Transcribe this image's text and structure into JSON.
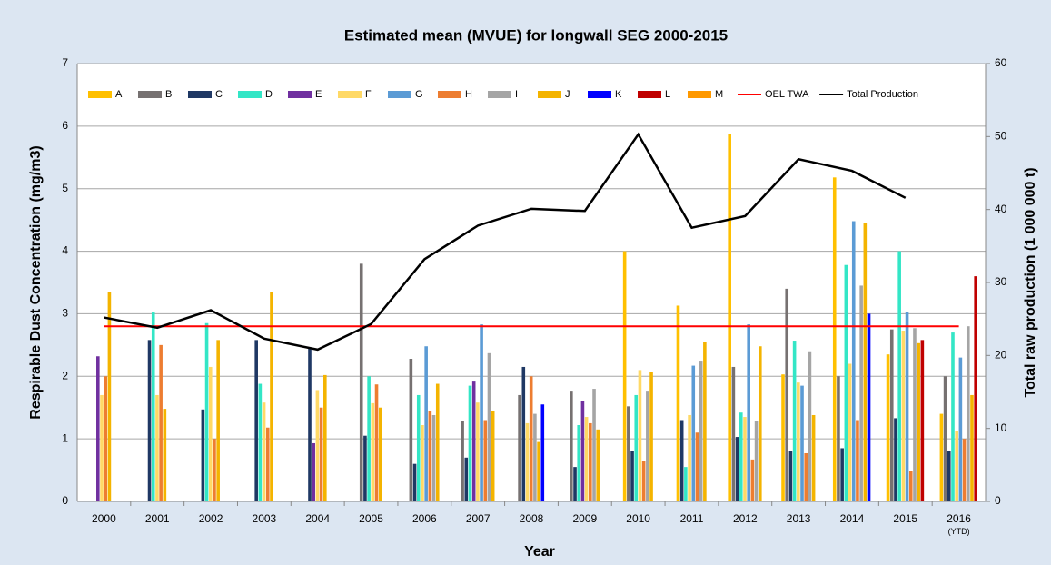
{
  "chart_data": {
    "type": "bar",
    "title": "Estimated mean (MVUE) for longwall SEG 2000-2015",
    "y_label": "Respirable Dust Concentration (mg/m3)",
    "y2_label": "Total raw production  (1 000 000 t)",
    "x_label": "Year",
    "categories": [
      "2000",
      "2001",
      "2002",
      "2003",
      "2004",
      "2005",
      "2006",
      "2007",
      "2008",
      "2009",
      "2010",
      "2011",
      "2012",
      "2013",
      "2014",
      "2015",
      "2016 (YTD)"
    ],
    "ylim": [
      0,
      7
    ],
    "yticks": [
      0,
      1,
      2,
      3,
      4,
      5,
      6,
      7
    ],
    "y2lim": [
      0,
      60
    ],
    "y2ticks": [
      0,
      10,
      20,
      30,
      40,
      50,
      60
    ],
    "grid": true,
    "legend": "top-left",
    "series": [
      {
        "name": "A",
        "color": "#ffc000",
        "values": [
          null,
          null,
          null,
          null,
          null,
          null,
          null,
          null,
          null,
          null,
          4.0,
          3.13,
          5.87,
          2.03,
          5.18,
          2.35,
          1.4
        ]
      },
      {
        "name": "B",
        "color": "#767171",
        "values": [
          null,
          null,
          null,
          null,
          null,
          3.8,
          2.28,
          1.28,
          1.7,
          1.77,
          1.52,
          null,
          2.15,
          3.4,
          2.0,
          2.75,
          2.0
        ]
      },
      {
        "name": "C",
        "color": "#1f3864",
        "values": [
          null,
          2.58,
          1.47,
          2.58,
          2.45,
          1.05,
          0.6,
          0.7,
          2.15,
          0.55,
          0.8,
          1.3,
          1.03,
          0.8,
          0.85,
          1.33,
          0.8
        ]
      },
      {
        "name": "D",
        "color": "#33e6c6",
        "values": [
          null,
          3.02,
          2.85,
          1.88,
          null,
          2.0,
          1.7,
          1.85,
          null,
          1.22,
          1.7,
          0.55,
          1.42,
          2.57,
          3.78,
          4.0,
          2.7
        ]
      },
      {
        "name": "E",
        "color": "#7030a0",
        "values": [
          2.32,
          null,
          null,
          null,
          0.93,
          null,
          null,
          1.93,
          null,
          1.6,
          null,
          null,
          null,
          null,
          null,
          null,
          null
        ]
      },
      {
        "name": "F",
        "color": "#ffd966",
        "values": [
          1.7,
          1.7,
          2.15,
          1.58,
          1.78,
          1.57,
          1.22,
          1.58,
          1.25,
          1.35,
          2.1,
          1.38,
          1.35,
          1.9,
          2.2,
          2.73,
          1.12
        ]
      },
      {
        "name": "G",
        "color": "#5b9bd5",
        "values": [
          null,
          null,
          null,
          null,
          null,
          null,
          2.48,
          2.83,
          null,
          null,
          null,
          2.17,
          2.83,
          1.85,
          4.48,
          3.03,
          2.3
        ]
      },
      {
        "name": "H",
        "color": "#ed7d31",
        "values": [
          2.0,
          2.5,
          1.0,
          1.18,
          1.5,
          1.87,
          1.45,
          1.3,
          2.0,
          1.25,
          0.65,
          1.1,
          0.67,
          0.77,
          1.3,
          0.48,
          1.0
        ]
      },
      {
        "name": "I",
        "color": "#a5a5a5",
        "values": [
          null,
          null,
          null,
          null,
          null,
          null,
          1.38,
          2.37,
          1.4,
          1.8,
          1.77,
          2.25,
          1.28,
          2.4,
          3.45,
          2.77,
          2.8
        ]
      },
      {
        "name": "J",
        "color": "#f4b400",
        "values": [
          3.35,
          1.48,
          2.58,
          3.35,
          2.02,
          1.5,
          1.88,
          1.45,
          0.95,
          1.15,
          2.07,
          2.55,
          2.48,
          1.38,
          4.45,
          2.53,
          1.7
        ]
      },
      {
        "name": "K",
        "color": "#0000ff",
        "values": [
          null,
          null,
          null,
          null,
          null,
          null,
          null,
          null,
          1.55,
          null,
          null,
          null,
          null,
          null,
          3.0,
          null,
          null
        ]
      },
      {
        "name": "L",
        "color": "#c00000",
        "values": [
          null,
          null,
          null,
          null,
          null,
          null,
          null,
          null,
          null,
          null,
          null,
          null,
          null,
          null,
          null,
          2.58,
          3.6
        ]
      },
      {
        "name": "M",
        "color": "#ff9900",
        "values": [
          null,
          null,
          null,
          null,
          null,
          null,
          null,
          null,
          null,
          null,
          null,
          null,
          null,
          null,
          null,
          null,
          null
        ]
      },
      {
        "name": "OEL TWA",
        "type": "line",
        "color": "#ff0000",
        "values": [
          2.8,
          2.8,
          2.8,
          2.8,
          2.8,
          2.8,
          2.8,
          2.8,
          2.8,
          2.8,
          2.8,
          2.8,
          2.8,
          2.8,
          2.8,
          2.8,
          2.8
        ]
      },
      {
        "name": "Total Production",
        "type": "line",
        "axis": "y2",
        "color": "#000000",
        "values": [
          25.2,
          23.8,
          26.2,
          22.3,
          20.8,
          24.3,
          33.2,
          37.8,
          40.1,
          39.8,
          50.3,
          37.5,
          39.1,
          46.9,
          45.3,
          41.6,
          null
        ]
      }
    ]
  }
}
